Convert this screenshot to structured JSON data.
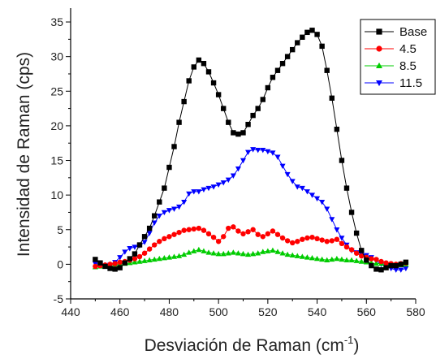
{
  "chart_data": {
    "type": "line",
    "xlabel": "Desviación de Raman (cm",
    "xlabel_sup": "-1",
    "xlabel_close": ")",
    "ylabel": "Intensidad de Raman (cps)",
    "xlim": [
      440,
      580
    ],
    "ylim": [
      -5,
      37
    ],
    "xticks": [
      440,
      460,
      480,
      500,
      520,
      540,
      560,
      580
    ],
    "yticks": [
      -5,
      0,
      5,
      10,
      15,
      20,
      25,
      30,
      35
    ],
    "legend_position": "top-right",
    "grid": false,
    "series": [
      {
        "name": "Base",
        "color": "#000000",
        "marker": "square",
        "points": [
          [
            450,
            0.7
          ],
          [
            452,
            0.2
          ],
          [
            454,
            -0.3
          ],
          [
            456,
            -0.6
          ],
          [
            458,
            -0.7
          ],
          [
            460,
            -0.5
          ],
          [
            462,
            0.2
          ],
          [
            464,
            0.8
          ],
          [
            466,
            1.5
          ],
          [
            468,
            2.8
          ],
          [
            470,
            4.0
          ],
          [
            472,
            5.2
          ],
          [
            474,
            7.0
          ],
          [
            476,
            9.0
          ],
          [
            478,
            11.0
          ],
          [
            480,
            14.0
          ],
          [
            482,
            17.0
          ],
          [
            484,
            20.5
          ],
          [
            486,
            23.5
          ],
          [
            488,
            26.5
          ],
          [
            490,
            28.5
          ],
          [
            492,
            29.5
          ],
          [
            494,
            29.0
          ],
          [
            496,
            27.8
          ],
          [
            498,
            26.2
          ],
          [
            500,
            24.5
          ],
          [
            502,
            22.5
          ],
          [
            504,
            20.5
          ],
          [
            506,
            19.0
          ],
          [
            508,
            18.8
          ],
          [
            510,
            19.0
          ],
          [
            512,
            20.2
          ],
          [
            514,
            21.5
          ],
          [
            516,
            22.5
          ],
          [
            518,
            23.8
          ],
          [
            520,
            25.5
          ],
          [
            522,
            27.0
          ],
          [
            524,
            28.0
          ],
          [
            526,
            29.0
          ],
          [
            528,
            30.0
          ],
          [
            530,
            31.0
          ],
          [
            532,
            32.0
          ],
          [
            534,
            32.8
          ],
          [
            536,
            33.5
          ],
          [
            538,
            33.8
          ],
          [
            540,
            33.2
          ],
          [
            542,
            31.5
          ],
          [
            544,
            28.0
          ],
          [
            546,
            24.0
          ],
          [
            548,
            19.5
          ],
          [
            550,
            15.0
          ],
          [
            552,
            11.0
          ],
          [
            554,
            7.5
          ],
          [
            556,
            4.5
          ],
          [
            558,
            2.0
          ],
          [
            560,
            0.6
          ],
          [
            562,
            -0.2
          ],
          [
            564,
            -0.7
          ],
          [
            566,
            -0.8
          ],
          [
            568,
            -0.5
          ],
          [
            570,
            -0.2
          ],
          [
            572,
            -0.2
          ],
          [
            574,
            0.0
          ],
          [
            576,
            0.3
          ]
        ]
      },
      {
        "name": "4.5",
        "color": "#ff0000",
        "marker": "circle",
        "points": [
          [
            450,
            -0.3
          ],
          [
            452,
            -0.2
          ],
          [
            454,
            -0.1
          ],
          [
            456,
            0.0
          ],
          [
            458,
            0.1
          ],
          [
            460,
            0.3
          ],
          [
            462,
            0.4
          ],
          [
            464,
            0.6
          ],
          [
            466,
            0.8
          ],
          [
            468,
            1.1
          ],
          [
            470,
            1.6
          ],
          [
            472,
            2.2
          ],
          [
            474,
            2.8
          ],
          [
            476,
            3.3
          ],
          [
            478,
            3.7
          ],
          [
            480,
            4.0
          ],
          [
            482,
            4.3
          ],
          [
            484,
            4.6
          ],
          [
            486,
            4.9
          ],
          [
            488,
            5.0
          ],
          [
            490,
            5.1
          ],
          [
            492,
            5.2
          ],
          [
            494,
            4.9
          ],
          [
            496,
            4.4
          ],
          [
            498,
            3.9
          ],
          [
            500,
            3.3
          ],
          [
            502,
            4.0
          ],
          [
            504,
            5.2
          ],
          [
            506,
            5.4
          ],
          [
            508,
            4.8
          ],
          [
            510,
            4.4
          ],
          [
            512,
            4.7
          ],
          [
            514,
            5.0
          ],
          [
            516,
            4.3
          ],
          [
            518,
            4.0
          ],
          [
            520,
            4.4
          ],
          [
            522,
            4.8
          ],
          [
            524,
            4.3
          ],
          [
            526,
            3.8
          ],
          [
            528,
            3.4
          ],
          [
            530,
            3.1
          ],
          [
            532,
            3.3
          ],
          [
            534,
            3.6
          ],
          [
            536,
            3.8
          ],
          [
            538,
            3.9
          ],
          [
            540,
            3.7
          ],
          [
            542,
            3.5
          ],
          [
            544,
            3.3
          ],
          [
            546,
            3.4
          ],
          [
            548,
            3.6
          ],
          [
            550,
            3.0
          ],
          [
            552,
            2.5
          ],
          [
            554,
            2.1
          ],
          [
            556,
            1.6
          ],
          [
            558,
            1.2
          ],
          [
            560,
            1.0
          ],
          [
            562,
            0.8
          ],
          [
            564,
            0.7
          ],
          [
            566,
            0.4
          ],
          [
            568,
            0.2
          ],
          [
            570,
            0.1
          ],
          [
            572,
            0.0
          ],
          [
            574,
            0.1
          ],
          [
            576,
            0.2
          ]
        ]
      },
      {
        "name": "8.5",
        "color": "#00cc00",
        "marker": "triangle-up",
        "points": [
          [
            450,
            -0.4
          ],
          [
            452,
            -0.3
          ],
          [
            454,
            -0.2
          ],
          [
            456,
            -0.1
          ],
          [
            458,
            0.0
          ],
          [
            460,
            0.0
          ],
          [
            462,
            0.1
          ],
          [
            464,
            0.2
          ],
          [
            466,
            0.3
          ],
          [
            468,
            0.4
          ],
          [
            470,
            0.5
          ],
          [
            472,
            0.6
          ],
          [
            474,
            0.7
          ],
          [
            476,
            0.8
          ],
          [
            478,
            0.9
          ],
          [
            480,
            1.0
          ],
          [
            482,
            1.1
          ],
          [
            484,
            1.2
          ],
          [
            486,
            1.4
          ],
          [
            488,
            1.7
          ],
          [
            490,
            1.9
          ],
          [
            492,
            2.1
          ],
          [
            494,
            1.9
          ],
          [
            496,
            1.7
          ],
          [
            498,
            1.6
          ],
          [
            500,
            1.5
          ],
          [
            502,
            1.5
          ],
          [
            504,
            1.6
          ],
          [
            506,
            1.7
          ],
          [
            508,
            1.6
          ],
          [
            510,
            1.5
          ],
          [
            512,
            1.4
          ],
          [
            514,
            1.5
          ],
          [
            516,
            1.6
          ],
          [
            518,
            1.8
          ],
          [
            520,
            1.9
          ],
          [
            522,
            2.0
          ],
          [
            524,
            1.8
          ],
          [
            526,
            1.6
          ],
          [
            528,
            1.4
          ],
          [
            530,
            1.3
          ],
          [
            532,
            1.2
          ],
          [
            534,
            1.1
          ],
          [
            536,
            1.0
          ],
          [
            538,
            0.9
          ],
          [
            540,
            0.8
          ],
          [
            542,
            0.7
          ],
          [
            544,
            0.6
          ],
          [
            546,
            0.7
          ],
          [
            548,
            0.8
          ],
          [
            550,
            0.7
          ],
          [
            552,
            0.6
          ],
          [
            554,
            0.6
          ],
          [
            556,
            0.5
          ],
          [
            558,
            0.4
          ],
          [
            560,
            0.3
          ],
          [
            562,
            0.2
          ],
          [
            564,
            0.1
          ],
          [
            566,
            0.1
          ],
          [
            568,
            0.0
          ],
          [
            570,
            -0.1
          ],
          [
            572,
            -0.2
          ],
          [
            574,
            -0.1
          ],
          [
            576,
            0.0
          ]
        ]
      },
      {
        "name": "11.5",
        "color": "#0000ff",
        "marker": "triangle-down",
        "points": [
          [
            450,
            0.1
          ],
          [
            452,
            0.0
          ],
          [
            454,
            -0.2
          ],
          [
            456,
            -0.1
          ],
          [
            458,
            0.3
          ],
          [
            460,
            1.0
          ],
          [
            462,
            1.8
          ],
          [
            464,
            2.3
          ],
          [
            466,
            2.5
          ],
          [
            468,
            2.7
          ],
          [
            470,
            3.2
          ],
          [
            472,
            4.5
          ],
          [
            474,
            6.0
          ],
          [
            476,
            7.0
          ],
          [
            478,
            7.5
          ],
          [
            480,
            7.8
          ],
          [
            482,
            8.0
          ],
          [
            484,
            8.3
          ],
          [
            486,
            9.0
          ],
          [
            488,
            10.2
          ],
          [
            490,
            10.5
          ],
          [
            492,
            10.5
          ],
          [
            494,
            10.8
          ],
          [
            496,
            11.0
          ],
          [
            498,
            11.2
          ],
          [
            500,
            11.5
          ],
          [
            502,
            11.8
          ],
          [
            504,
            12.2
          ],
          [
            506,
            12.8
          ],
          [
            508,
            13.8
          ],
          [
            510,
            15.0
          ],
          [
            512,
            16.2
          ],
          [
            514,
            16.6
          ],
          [
            516,
            16.5
          ],
          [
            518,
            16.5
          ],
          [
            520,
            16.3
          ],
          [
            522,
            16.1
          ],
          [
            524,
            15.5
          ],
          [
            526,
            14.2
          ],
          [
            528,
            13.0
          ],
          [
            530,
            12.0
          ],
          [
            532,
            11.2
          ],
          [
            534,
            11.0
          ],
          [
            536,
            10.5
          ],
          [
            538,
            10.0
          ],
          [
            540,
            9.5
          ],
          [
            542,
            9.0
          ],
          [
            544,
            8.0
          ],
          [
            546,
            6.5
          ],
          [
            548,
            5.0
          ],
          [
            550,
            3.8
          ],
          [
            552,
            2.8
          ],
          [
            554,
            2.0
          ],
          [
            556,
            1.7
          ],
          [
            558,
            1.5
          ],
          [
            560,
            1.3
          ],
          [
            562,
            1.0
          ],
          [
            564,
            0.5
          ],
          [
            566,
            0.0
          ],
          [
            568,
            -0.3
          ],
          [
            570,
            -0.6
          ],
          [
            572,
            -0.8
          ],
          [
            574,
            -0.8
          ],
          [
            576,
            -0.6
          ]
        ]
      }
    ]
  }
}
